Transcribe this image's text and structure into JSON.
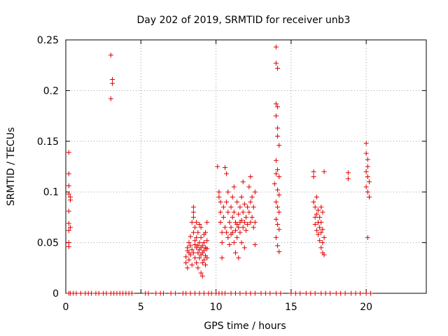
{
  "chart_data": {
    "type": "scatter",
    "title": "Day 202 of 2019, SRMTID for receiver unb3",
    "xlabel": "GPS time / hours",
    "ylabel": "SRMTID / TECUs",
    "xlim": [
      0,
      24
    ],
    "ylim": [
      0,
      0.25
    ],
    "xticks": [
      0,
      5,
      10,
      15,
      20
    ],
    "xtick_labels": [
      "0",
      "5",
      "10",
      "15",
      "20"
    ],
    "yticks": [
      0,
      0.05,
      0.1,
      0.15,
      0.2,
      0.25
    ],
    "ytick_labels": [
      "0",
      "0.05",
      "0.1",
      "0.15",
      "0.2",
      "0.25"
    ],
    "grid": true,
    "marker": "+",
    "color": "#e00000",
    "series": [
      {
        "name": "SRMTID",
        "points": [
          [
            0.2,
            0.0
          ],
          [
            0.3,
            0.0
          ],
          [
            0.5,
            0.0
          ],
          [
            0.7,
            0.0
          ],
          [
            1.0,
            0.0
          ],
          [
            1.3,
            0.0
          ],
          [
            1.5,
            0.0
          ],
          [
            1.7,
            0.0
          ],
          [
            2.0,
            0.0
          ],
          [
            2.2,
            0.0
          ],
          [
            2.5,
            0.0
          ],
          [
            2.7,
            0.0
          ],
          [
            3.0,
            0.0
          ],
          [
            3.2,
            0.0
          ],
          [
            3.4,
            0.0
          ],
          [
            3.6,
            0.0
          ],
          [
            3.8,
            0.0
          ],
          [
            4.0,
            0.0
          ],
          [
            4.2,
            0.0
          ],
          [
            4.4,
            0.0
          ],
          [
            5.3,
            0.0
          ],
          [
            5.5,
            0.0
          ],
          [
            6.0,
            0.0
          ],
          [
            6.3,
            0.0
          ],
          [
            6.5,
            0.0
          ],
          [
            7.0,
            0.0
          ],
          [
            7.3,
            0.0
          ],
          [
            7.8,
            0.0
          ],
          [
            8.0,
            0.0
          ],
          [
            8.3,
            0.0
          ],
          [
            8.6,
            0.0
          ],
          [
            8.9,
            0.0
          ],
          [
            9.2,
            0.0
          ],
          [
            9.5,
            0.0
          ],
          [
            9.7,
            0.0
          ],
          [
            10.0,
            0.0
          ],
          [
            10.2,
            0.0
          ],
          [
            10.4,
            0.0
          ],
          [
            10.6,
            0.0
          ],
          [
            11.0,
            0.0
          ],
          [
            11.3,
            0.0
          ],
          [
            11.6,
            0.0
          ],
          [
            12.0,
            0.0
          ],
          [
            12.3,
            0.0
          ],
          [
            12.6,
            0.0
          ],
          [
            13.0,
            0.0
          ],
          [
            13.3,
            0.0
          ],
          [
            13.6,
            0.0
          ],
          [
            14.0,
            0.0
          ],
          [
            14.3,
            0.0
          ],
          [
            15.0,
            0.0
          ],
          [
            15.3,
            0.0
          ],
          [
            15.6,
            0.0
          ],
          [
            16.0,
            0.0
          ],
          [
            16.3,
            0.0
          ],
          [
            16.6,
            0.0
          ],
          [
            17.0,
            0.0
          ],
          [
            17.3,
            0.0
          ],
          [
            17.6,
            0.0
          ],
          [
            18.0,
            0.0
          ],
          [
            18.3,
            0.0
          ],
          [
            18.6,
            0.0
          ],
          [
            19.0,
            0.0
          ],
          [
            19.3,
            0.0
          ],
          [
            19.6,
            0.0
          ],
          [
            20.0,
            0.0
          ],
          [
            20.3,
            0.0
          ],
          [
            0.2,
            0.139
          ],
          [
            0.2,
            0.118
          ],
          [
            0.2,
            0.106
          ],
          [
            0.2,
            0.098
          ],
          [
            0.3,
            0.095
          ],
          [
            0.3,
            0.092
          ],
          [
            0.2,
            0.081
          ],
          [
            0.2,
            0.069
          ],
          [
            0.3,
            0.065
          ],
          [
            0.2,
            0.062
          ],
          [
            0.2,
            0.05
          ],
          [
            0.2,
            0.046
          ],
          [
            3.0,
            0.235
          ],
          [
            3.1,
            0.211
          ],
          [
            3.1,
            0.207
          ],
          [
            3.0,
            0.192
          ],
          [
            8.0,
            0.03
          ],
          [
            8.0,
            0.036
          ],
          [
            8.1,
            0.042
          ],
          [
            8.1,
            0.045
          ],
          [
            8.1,
            0.025
          ],
          [
            8.2,
            0.04
          ],
          [
            8.2,
            0.05
          ],
          [
            8.2,
            0.033
          ],
          [
            8.3,
            0.047
          ],
          [
            8.3,
            0.056
          ],
          [
            8.3,
            0.038
          ],
          [
            8.4,
            0.043
          ],
          [
            8.4,
            0.07
          ],
          [
            8.4,
            0.028
          ],
          [
            8.5,
            0.04
          ],
          [
            8.5,
            0.06
          ],
          [
            8.5,
            0.075
          ],
          [
            8.5,
            0.08
          ],
          [
            8.5,
            0.085
          ],
          [
            8.6,
            0.035
          ],
          [
            8.6,
            0.048
          ],
          [
            8.6,
            0.052
          ],
          [
            8.6,
            0.065
          ],
          [
            8.7,
            0.03
          ],
          [
            8.7,
            0.045
          ],
          [
            8.7,
            0.055
          ],
          [
            8.7,
            0.07
          ],
          [
            8.8,
            0.04
          ],
          [
            8.8,
            0.047
          ],
          [
            8.8,
            0.06
          ],
          [
            8.8,
            0.025
          ],
          [
            8.9,
            0.035
          ],
          [
            8.9,
            0.043
          ],
          [
            8.9,
            0.05
          ],
          [
            8.9,
            0.068
          ],
          [
            9.0,
            0.02
          ],
          [
            9.0,
            0.038
          ],
          [
            9.0,
            0.045
          ],
          [
            9.0,
            0.055
          ],
          [
            9.0,
            0.065
          ],
          [
            9.1,
            0.03
          ],
          [
            9.1,
            0.04
          ],
          [
            9.1,
            0.047
          ],
          [
            9.1,
            0.017
          ],
          [
            9.2,
            0.033
          ],
          [
            9.2,
            0.042
          ],
          [
            9.2,
            0.05
          ],
          [
            9.2,
            0.058
          ],
          [
            9.3,
            0.028
          ],
          [
            9.3,
            0.037
          ],
          [
            9.3,
            0.045
          ],
          [
            9.3,
            0.06
          ],
          [
            9.4,
            0.035
          ],
          [
            9.4,
            0.044
          ],
          [
            9.4,
            0.052
          ],
          [
            9.4,
            0.07
          ],
          [
            10.1,
            0.125
          ],
          [
            10.2,
            0.1
          ],
          [
            10.2,
            0.095
          ],
          [
            10.3,
            0.09
          ],
          [
            10.3,
            0.08
          ],
          [
            10.3,
            0.07
          ],
          [
            10.4,
            0.06
          ],
          [
            10.4,
            0.05
          ],
          [
            10.4,
            0.035
          ],
          [
            10.5,
            0.085
          ],
          [
            10.5,
            0.075
          ],
          [
            10.6,
            0.124
          ],
          [
            10.6,
            0.065
          ],
          [
            10.7,
            0.118
          ],
          [
            10.7,
            0.09
          ],
          [
            10.7,
            0.06
          ],
          [
            10.8,
            0.1
          ],
          [
            10.8,
            0.08
          ],
          [
            10.8,
            0.055
          ],
          [
            10.9,
            0.07
          ],
          [
            10.9,
            0.048
          ],
          [
            11.0,
            0.085
          ],
          [
            11.0,
            0.065
          ],
          [
            11.0,
            0.058
          ],
          [
            11.1,
            0.095
          ],
          [
            11.1,
            0.075
          ],
          [
            11.1,
            0.06
          ],
          [
            11.2,
            0.105
          ],
          [
            11.2,
            0.08
          ],
          [
            11.2,
            0.05
          ],
          [
            11.3,
            0.07
          ],
          [
            11.3,
            0.062
          ],
          [
            11.3,
            0.04
          ],
          [
            11.4,
            0.09
          ],
          [
            11.4,
            0.068
          ],
          [
            11.4,
            0.055
          ],
          [
            11.5,
            0.078
          ],
          [
            11.5,
            0.065
          ],
          [
            11.5,
            0.035
          ],
          [
            11.6,
            0.085
          ],
          [
            11.6,
            0.07
          ],
          [
            11.6,
            0.06
          ],
          [
            11.7,
            0.095
          ],
          [
            11.7,
            0.072
          ],
          [
            11.7,
            0.05
          ],
          [
            11.8,
            0.11
          ],
          [
            11.8,
            0.08
          ],
          [
            11.8,
            0.065
          ],
          [
            11.9,
            0.088
          ],
          [
            11.9,
            0.07
          ],
          [
            11.9,
            0.045
          ],
          [
            12.0,
            0.075
          ],
          [
            12.0,
            0.062
          ],
          [
            12.1,
            0.085
          ],
          [
            12.1,
            0.068
          ],
          [
            12.2,
            0.105
          ],
          [
            12.2,
            0.08
          ],
          [
            12.3,
            0.115
          ],
          [
            12.3,
            0.09
          ],
          [
            12.3,
            0.07
          ],
          [
            12.4,
            0.095
          ],
          [
            12.4,
            0.075
          ],
          [
            12.5,
            0.085
          ],
          [
            12.5,
            0.065
          ],
          [
            12.6,
            0.1
          ],
          [
            12.6,
            0.07
          ],
          [
            12.6,
            0.048
          ],
          [
            14.0,
            0.243
          ],
          [
            14.0,
            0.227
          ],
          [
            14.1,
            0.222
          ],
          [
            14.0,
            0.187
          ],
          [
            14.1,
            0.184
          ],
          [
            14.0,
            0.175
          ],
          [
            14.1,
            0.163
          ],
          [
            14.1,
            0.155
          ],
          [
            14.2,
            0.146
          ],
          [
            14.0,
            0.131
          ],
          [
            14.1,
            0.122
          ],
          [
            14.0,
            0.118
          ],
          [
            14.2,
            0.115
          ],
          [
            13.9,
            0.108
          ],
          [
            14.1,
            0.102
          ],
          [
            14.2,
            0.097
          ],
          [
            14.0,
            0.09
          ],
          [
            14.1,
            0.085
          ],
          [
            14.2,
            0.08
          ],
          [
            14.0,
            0.073
          ],
          [
            14.1,
            0.068
          ],
          [
            14.2,
            0.063
          ],
          [
            14.0,
            0.055
          ],
          [
            14.1,
            0.047
          ],
          [
            14.2,
            0.041
          ],
          [
            16.5,
            0.12
          ],
          [
            16.5,
            0.115
          ],
          [
            16.5,
            0.09
          ],
          [
            16.6,
            0.085
          ],
          [
            16.6,
            0.075
          ],
          [
            16.6,
            0.068
          ],
          [
            16.7,
            0.095
          ],
          [
            16.7,
            0.078
          ],
          [
            16.7,
            0.062
          ],
          [
            16.8,
            0.082
          ],
          [
            16.8,
            0.07
          ],
          [
            16.8,
            0.058
          ],
          [
            16.9,
            0.075
          ],
          [
            16.9,
            0.065
          ],
          [
            16.9,
            0.052
          ],
          [
            17.0,
            0.085
          ],
          [
            17.0,
            0.07
          ],
          [
            17.0,
            0.06
          ],
          [
            17.0,
            0.045
          ],
          [
            17.1,
            0.08
          ],
          [
            17.1,
            0.063
          ],
          [
            17.1,
            0.05
          ],
          [
            17.1,
            0.04
          ],
          [
            17.2,
            0.12
          ],
          [
            17.2,
            0.055
          ],
          [
            17.2,
            0.038
          ],
          [
            18.8,
            0.119
          ],
          [
            18.8,
            0.113
          ],
          [
            20.0,
            0.148
          ],
          [
            20.0,
            0.138
          ],
          [
            20.1,
            0.132
          ],
          [
            20.1,
            0.125
          ],
          [
            20.0,
            0.12
          ],
          [
            20.1,
            0.115
          ],
          [
            20.2,
            0.11
          ],
          [
            20.0,
            0.105
          ],
          [
            20.1,
            0.1
          ],
          [
            20.2,
            0.095
          ],
          [
            20.1,
            0.055
          ]
        ]
      }
    ]
  }
}
